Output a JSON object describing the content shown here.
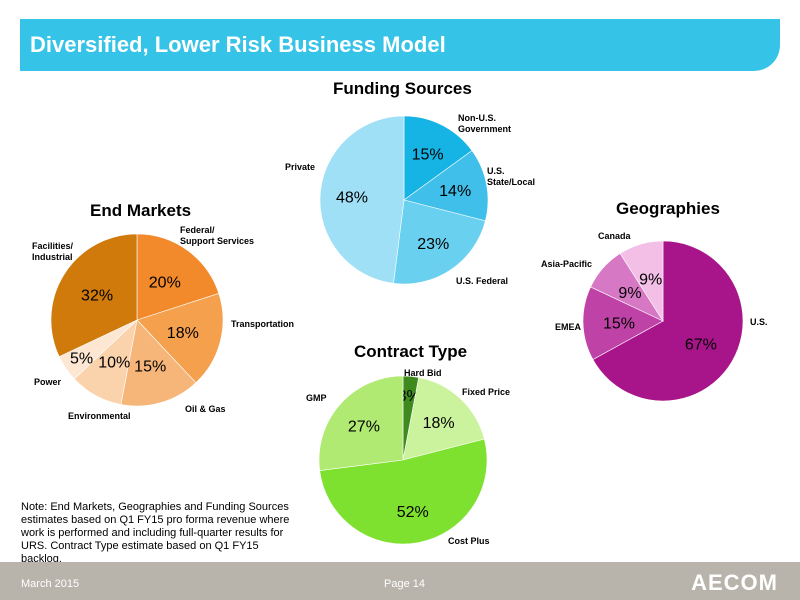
{
  "header": {
    "title": "Diversified, Lower Risk Business Model"
  },
  "chart_data": [
    {
      "type": "pie",
      "title": "End Markets",
      "slices": [
        {
          "label": "Federal/\nSupport Services",
          "value": 20,
          "display": "20%",
          "color": "#f2892a"
        },
        {
          "label": "Transportation",
          "value": 18,
          "display": "18%",
          "color": "#f5a04c"
        },
        {
          "label": "Oil & Gas",
          "value": 15,
          "display": "15%",
          "color": "#f7b679"
        },
        {
          "label": "Environmental",
          "value": 10,
          "display": "10%",
          "color": "#fad2ac"
        },
        {
          "label": "Power",
          "value": 5,
          "display": "5%",
          "color": "#fde6d2"
        },
        {
          "label": "Facilities/\nIndustrial",
          "value": 32,
          "display": "32%",
          "color": "#d07a0c"
        }
      ]
    },
    {
      "type": "pie",
      "title": "Funding Sources",
      "slices": [
        {
          "label": "Non-U.S.\nGovernment",
          "value": 15,
          "display": "15%",
          "color": "#16b3e5"
        },
        {
          "label": "U.S.\nState/Local",
          "value": 14,
          "display": "14%",
          "color": "#3fbfea"
        },
        {
          "label": "U.S. Federal",
          "value": 23,
          "display": "23%",
          "color": "#6ad0f0"
        },
        {
          "label": "Private",
          "value": 48,
          "display": "48%",
          "color": "#9fe0f6"
        }
      ]
    },
    {
      "type": "pie",
      "title": "Geographies",
      "slices": [
        {
          "label": "U.S.",
          "value": 67,
          "display": "67%",
          "color": "#a8158a"
        },
        {
          "label": "EMEA",
          "value": 15,
          "display": "15%",
          "color": "#bf43a6"
        },
        {
          "label": "Asia-Pacific",
          "value": 9,
          "display": "9%",
          "color": "#d778c4"
        },
        {
          "label": "Canada",
          "value": 9,
          "display": "9%",
          "color": "#f3bfe7"
        }
      ]
    },
    {
      "type": "pie",
      "title": "Contract Type",
      "slices": [
        {
          "label": "Hard Bid",
          "value": 3,
          "display": "3%",
          "color": "#3f8a1e"
        },
        {
          "label": "Fixed Price",
          "value": 18,
          "display": "18%",
          "color": "#cbf29c"
        },
        {
          "label": "Cost Plus",
          "value": 52,
          "display": "52%",
          "color": "#7ee02f"
        },
        {
          "label": "GMP",
          "value": 27,
          "display": "27%",
          "color": "#b0ea72"
        }
      ]
    }
  ],
  "note": "Note: End Markets, Geographies and Funding Sources estimates based on Q1 FY15 pro forma revenue where work is performed and including full-quarter results for URS. Contract Type estimate based on Q1 FY15 backlog.",
  "footer": {
    "date": "March 2015",
    "page": "Page 14",
    "logo": "AECOM"
  }
}
